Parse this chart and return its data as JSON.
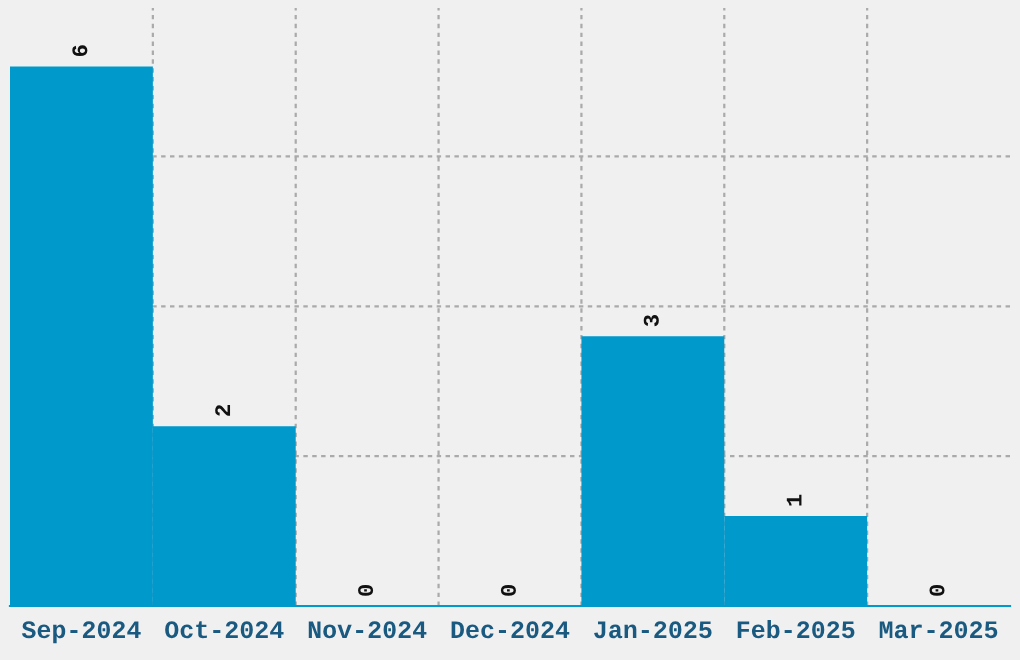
{
  "chart_data": {
    "type": "bar",
    "categories": [
      "Sep-2024",
      "Oct-2024",
      "Nov-2024",
      "Dec-2024",
      "Jan-2025",
      "Feb-2025",
      "Mar-2025"
    ],
    "values": [
      6,
      2,
      0,
      0,
      3,
      1,
      0
    ],
    "color": "#0099cc",
    "data_labels": true,
    "ylim": [
      0,
      6.65
    ],
    "yticks": [
      {
        "value": 1.667,
        "label": null
      },
      {
        "value": 3.333,
        "label": null
      },
      {
        "value": 5,
        "label": null
      }
    ],
    "tick_labels": "x",
    "grid": true
  }
}
